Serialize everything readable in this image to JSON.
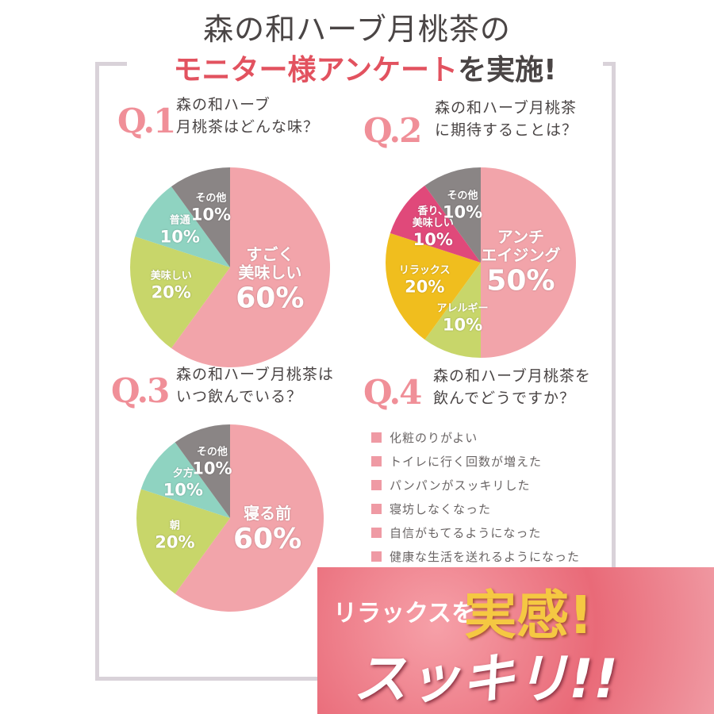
{
  "header": {
    "title": "森の和ハーブ月桃茶の",
    "highlight": "モニター様アンケート",
    "rest": "を実施!"
  },
  "chart_data": [
    {
      "type": "pie",
      "label": "Q.1",
      "title": "森の和ハーブ\n月桃茶はどんな味？",
      "categories": [
        "すごく\n美味しい",
        "美味しい",
        "普通",
        "その他"
      ],
      "values": [
        60,
        20,
        10,
        10
      ],
      "value_labels": [
        "60%",
        "20%",
        "10%",
        "10%"
      ],
      "colors": [
        "#f2a4aa",
        "#c8d66a",
        "#8fd3c1",
        "#8a8585"
      ]
    },
    {
      "type": "pie",
      "label": "Q.2",
      "title": "森の和ハーブ月桃茶\nに期待することは？",
      "categories": [
        "アンチ\nエイジング",
        "アレルギー",
        "リラックス",
        "香り、\n美味しい",
        "その他"
      ],
      "values": [
        50,
        10,
        20,
        10,
        10
      ],
      "value_labels": [
        "50%",
        "10%",
        "20%",
        "10%",
        "10%"
      ],
      "colors": [
        "#f2a4aa",
        "#c8d66a",
        "#f0be1e",
        "#e0497a",
        "#8a8585"
      ]
    },
    {
      "type": "pie",
      "label": "Q.3",
      "title": "森の和ハーブ月桃茶は\nいつ飲んでいる？",
      "categories": [
        "寝る前",
        "朝",
        "夕方",
        "その他"
      ],
      "values": [
        60,
        20,
        10,
        10
      ],
      "value_labels": [
        "60%",
        "20%",
        "10%",
        "10%"
      ],
      "colors": [
        "#f2a4aa",
        "#c8d66a",
        "#8fd3c1",
        "#8a8585"
      ]
    }
  ],
  "q4": {
    "label": "Q.4",
    "title": "森の和ハーブ月桃茶を\n飲んでどうですか？",
    "items": [
      "化粧のりがよい",
      "トイレに行く回数が増えた",
      "パンパンがスッキリした",
      "寝坊しなくなった",
      "自信がもてるようになった",
      "健康な生活を送れるようになった"
    ]
  },
  "banner": {
    "line1": "リラックスを",
    "highlight": "実感!",
    "line2": "スッキリ!!"
  }
}
